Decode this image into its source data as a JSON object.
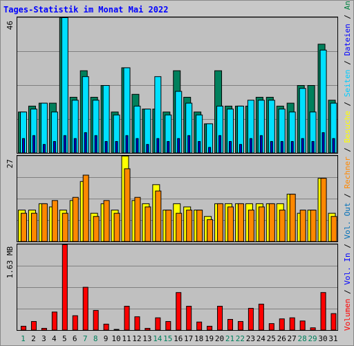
{
  "title": "Tages-Statistik im Monat Mai 2022",
  "right_legend": [
    {
      "text": "Volumen",
      "color": "#ff0000"
    },
    {
      "text": " / ",
      "color": "#000000"
    },
    {
      "text": "Vol. In",
      "color": "#0000ff"
    },
    {
      "text": " / ",
      "color": "#000000"
    },
    {
      "text": "Vol. Out",
      "color": "#006fb8"
    },
    {
      "text": " / ",
      "color": "#000000"
    },
    {
      "text": "Rechner",
      "color": "#ff8800"
    },
    {
      "text": " / ",
      "color": "#000000"
    },
    {
      "text": "Besuche",
      "color": "#ffff00"
    },
    {
      "text": " / ",
      "color": "#000000"
    },
    {
      "text": "Seiten",
      "color": "#00ccff"
    },
    {
      "text": " / ",
      "color": "#000000"
    },
    {
      "text": "Dateien",
      "color": "#0000ff"
    },
    {
      "text": " / ",
      "color": "#000000"
    },
    {
      "text": "Anfragen",
      "color": "#008040"
    }
  ],
  "colors": {
    "background": "#c8c8c8",
    "plot_bg": "#c0c0c0",
    "grid": "#808080",
    "anfragen": "#00805c",
    "seiten": "#00e0ff",
    "dateien": "#0000d0",
    "besuche": "#ffff00",
    "rechner": "#ff8800",
    "volumen": "#ff0000",
    "weekend_label": "#00805c",
    "weekday_label": "#000000"
  },
  "chart_data": [
    {
      "type": "bar",
      "panel": "top",
      "max_label": "46",
      "ylim": [
        0,
        46
      ],
      "categories": [
        "1",
        "2",
        "3",
        "4",
        "5",
        "6",
        "7",
        "8",
        "9",
        "10",
        "11",
        "12",
        "13",
        "14",
        "15",
        "16",
        "17",
        "18",
        "19",
        "20",
        "21",
        "22",
        "23",
        "24",
        "25",
        "26",
        "27",
        "28",
        "29",
        "30",
        "31"
      ],
      "series": [
        {
          "name": "Anfragen",
          "values": [
            14,
            16,
            17,
            17,
            46,
            19,
            28,
            19,
            23,
            14,
            29,
            20,
            15,
            15,
            14,
            28,
            19,
            14,
            10,
            28,
            16,
            16,
            16,
            19,
            19,
            16,
            17,
            23,
            23,
            37,
            18
          ]
        },
        {
          "name": "Seiten",
          "values": [
            14,
            15,
            17,
            14,
            46,
            18,
            26,
            18,
            23,
            13,
            29,
            16,
            15,
            26,
            13,
            21,
            17,
            13,
            10,
            16,
            15,
            16,
            18,
            18,
            18,
            15,
            14,
            22,
            14,
            35,
            17
          ]
        },
        {
          "name": "Dateien",
          "values": [
            5,
            6,
            3,
            4,
            6,
            5,
            7,
            6,
            4,
            4,
            6,
            5,
            3,
            5,
            4,
            5,
            6,
            4,
            2,
            6,
            4,
            3,
            5,
            6,
            4,
            4,
            4,
            5,
            4,
            7,
            5
          ]
        }
      ]
    },
    {
      "type": "bar",
      "panel": "middle",
      "max_label": "27",
      "ylim": [
        0,
        27
      ],
      "categories": [
        "1",
        "2",
        "3",
        "4",
        "5",
        "6",
        "7",
        "8",
        "9",
        "10",
        "11",
        "12",
        "13",
        "14",
        "15",
        "16",
        "17",
        "18",
        "19",
        "20",
        "21",
        "22",
        "23",
        "24",
        "25",
        "26",
        "27",
        "28",
        "29",
        "30",
        "31"
      ],
      "series": [
        {
          "name": "Besuche",
          "values": [
            10,
            10,
            12,
            11,
            10,
            13,
            19,
            9,
            12,
            10,
            27,
            13,
            12,
            18,
            10,
            12,
            11,
            10,
            8,
            12,
            12,
            12,
            12,
            12,
            12,
            12,
            15,
            9,
            10,
            20,
            9
          ]
        },
        {
          "name": "Rechner",
          "values": [
            9,
            9,
            12,
            13,
            9,
            14,
            21,
            8,
            13,
            9,
            23,
            14,
            11,
            16,
            10,
            9,
            10,
            10,
            7,
            12,
            11,
            12,
            10,
            11,
            12,
            10,
            15,
            10,
            10,
            20,
            8
          ]
        }
      ]
    },
    {
      "type": "bar",
      "panel": "bottom",
      "max_label": "1.63 MB",
      "ylim": [
        0,
        1.63
      ],
      "categories": [
        "1",
        "2",
        "3",
        "4",
        "5",
        "6",
        "7",
        "8",
        "9",
        "10",
        "11",
        "12",
        "13",
        "14",
        "15",
        "16",
        "17",
        "18",
        "19",
        "20",
        "21",
        "22",
        "23",
        "24",
        "25",
        "26",
        "27",
        "28",
        "29",
        "30",
        "31"
      ],
      "series": [
        {
          "name": "Volumen",
          "values": [
            0.08,
            0.17,
            0.04,
            0.35,
            1.63,
            0.28,
            0.82,
            0.38,
            0.12,
            0.02,
            0.46,
            0.26,
            0.04,
            0.24,
            0.17,
            0.72,
            0.46,
            0.16,
            0.08,
            0.46,
            0.21,
            0.17,
            0.42,
            0.5,
            0.13,
            0.22,
            0.24,
            0.18,
            0.05,
            0.72,
            0.32
          ]
        }
      ]
    }
  ],
  "day_labels": [
    {
      "t": "1",
      "we": true
    },
    {
      "t": "2",
      "we": false
    },
    {
      "t": "3",
      "we": false
    },
    {
      "t": "4",
      "we": false
    },
    {
      "t": "5",
      "we": false
    },
    {
      "t": "6",
      "we": false
    },
    {
      "t": "7",
      "we": true
    },
    {
      "t": "8",
      "we": true
    },
    {
      "t": "9",
      "we": false
    },
    {
      "t": "10",
      "we": false
    },
    {
      "t": "11",
      "we": false
    },
    {
      "t": "12",
      "we": false
    },
    {
      "t": "13",
      "we": false
    },
    {
      "t": "14",
      "we": true
    },
    {
      "t": "15",
      "we": true
    },
    {
      "t": "16",
      "we": false
    },
    {
      "t": "17",
      "we": false
    },
    {
      "t": "18",
      "we": false
    },
    {
      "t": "19",
      "we": false
    },
    {
      "t": "20",
      "we": false
    },
    {
      "t": "21",
      "we": true
    },
    {
      "t": "22",
      "we": true
    },
    {
      "t": "23",
      "we": false
    },
    {
      "t": "24",
      "we": false
    },
    {
      "t": "25",
      "we": false
    },
    {
      "t": "26",
      "we": false
    },
    {
      "t": "27",
      "we": false
    },
    {
      "t": "28",
      "we": true
    },
    {
      "t": "29",
      "we": true
    },
    {
      "t": "30",
      "we": false
    },
    {
      "t": "31",
      "we": false
    }
  ]
}
